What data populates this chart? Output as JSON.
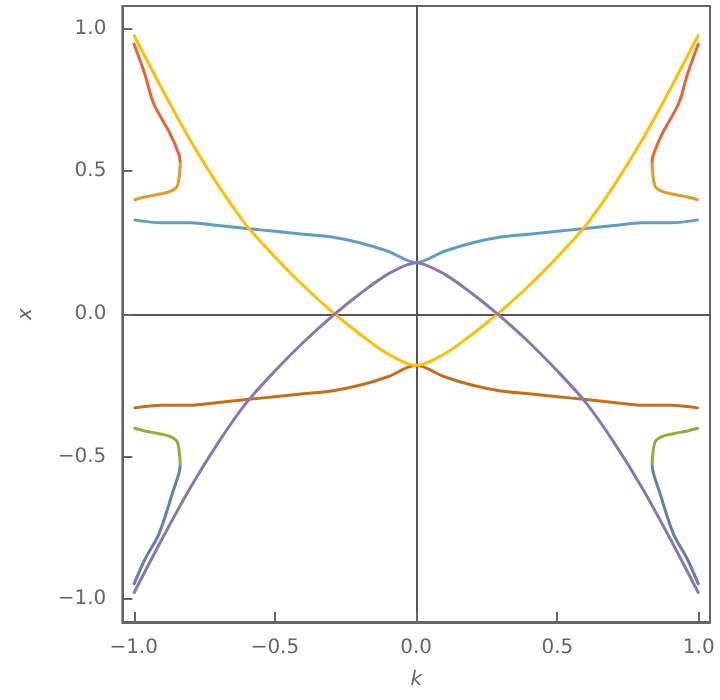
{
  "chart_data": {
    "type": "line",
    "xlabel": "k",
    "ylabel": "x",
    "marker": "none",
    "xlim": [
      -1.04,
      1.04
    ],
    "ylim": [
      -1.08,
      1.08
    ],
    "xticks": [
      {
        "value": -1,
        "label": "−1.0"
      },
      {
        "value": -0.5,
        "label": "−0.5"
      },
      {
        "value": 0,
        "label": "0.0"
      },
      {
        "value": 0.5,
        "label": "0.5"
      },
      {
        "value": 1,
        "label": "1.0"
      }
    ],
    "yticks": [
      {
        "value": -1,
        "label": "−1.0"
      },
      {
        "value": -0.5,
        "label": "−0.5"
      },
      {
        "value": 0,
        "label": "0.0"
      },
      {
        "value": 0.5,
        "label": "0.5"
      },
      {
        "value": 1,
        "label": "1.0"
      }
    ],
    "series": [
      {
        "color": "#5d9ec7",
        "x": [
          -1,
          -0.9,
          -0.8,
          -0.7,
          -0.6,
          -0.5,
          -0.4,
          -0.3,
          -0.2,
          -0.1,
          0,
          0.1,
          0.2,
          0.3,
          0.4,
          0.5,
          0.6,
          0.7,
          0.8,
          0.9,
          1
        ],
        "values": [
          0.33,
          0.32,
          0.32,
          0.31,
          0.3,
          0.29,
          0.28,
          0.27,
          0.25,
          0.22,
          0.18,
          0.22,
          0.25,
          0.27,
          0.28,
          0.29,
          0.3,
          0.31,
          0.32,
          0.32,
          0.33
        ]
      },
      {
        "color": "#c56e1a",
        "x": [
          -1,
          -0.9,
          -0.8,
          -0.7,
          -0.6,
          -0.5,
          -0.4,
          -0.3,
          -0.2,
          -0.1,
          0,
          0.1,
          0.2,
          0.3,
          0.4,
          0.5,
          0.6,
          0.7,
          0.8,
          0.9,
          1
        ],
        "values": [
          -0.33,
          -0.32,
          -0.32,
          -0.31,
          -0.3,
          -0.29,
          -0.28,
          -0.27,
          -0.25,
          -0.22,
          -0.18,
          -0.22,
          -0.25,
          -0.27,
          -0.28,
          -0.29,
          -0.3,
          -0.31,
          -0.32,
          -0.32,
          -0.33
        ]
      },
      {
        "color": "#ffbf00",
        "x": [
          -1,
          -0.9,
          -0.8,
          -0.7,
          -0.6,
          -0.5,
          -0.4,
          -0.3,
          -0.2,
          -0.1,
          0,
          0.1,
          0.2,
          0.3,
          0.4,
          0.5,
          0.6,
          0.7,
          0.8,
          0.9,
          1
        ],
        "values": [
          0.98,
          0.79,
          0.61,
          0.45,
          0.31,
          0.2,
          0.1,
          0.01,
          -0.07,
          -0.14,
          -0.18,
          -0.14,
          -0.07,
          0.01,
          0.1,
          0.2,
          0.31,
          0.45,
          0.61,
          0.79,
          0.98
        ]
      },
      {
        "color": "#8778b3",
        "x": [
          -1,
          -0.9,
          -0.8,
          -0.7,
          -0.6,
          -0.5,
          -0.4,
          -0.3,
          -0.2,
          -0.1,
          0,
          0.1,
          0.2,
          0.3,
          0.4,
          0.5,
          0.6,
          0.7,
          0.8,
          0.9,
          1
        ],
        "values": [
          -0.98,
          -0.79,
          -0.61,
          -0.45,
          -0.31,
          -0.2,
          -0.1,
          -0.01,
          0.07,
          0.14,
          0.18,
          0.14,
          0.07,
          -0.01,
          -0.1,
          -0.2,
          -0.31,
          -0.45,
          -0.61,
          -0.79,
          -0.98
        ]
      },
      {
        "color": "#eb6235",
        "x": [
          -1,
          -0.96,
          -0.93,
          -0.87,
          -0.84,
          -0.835
        ],
        "values": [
          0.95,
          0.84,
          0.74,
          0.63,
          0.56,
          0.53
        ]
      },
      {
        "color": "#e19c24",
        "x": [
          -0.835,
          -0.845,
          -0.87,
          -0.91,
          -0.96,
          -1
        ],
        "values": [
          0.53,
          0.45,
          0.43,
          0.42,
          0.41,
          0.4
        ]
      },
      {
        "color": "#eb6235",
        "x": [
          1,
          0.96,
          0.93,
          0.87,
          0.84,
          0.835
        ],
        "values": [
          0.95,
          0.84,
          0.74,
          0.63,
          0.56,
          0.53
        ]
      },
      {
        "color": "#e19c24",
        "x": [
          0.835,
          0.845,
          0.87,
          0.91,
          0.96,
          1
        ],
        "values": [
          0.53,
          0.45,
          0.43,
          0.42,
          0.41,
          0.4
        ]
      },
      {
        "color": "#5e81b5",
        "x": [
          -1,
          -0.96,
          -0.91,
          -0.86,
          -0.84,
          -0.835
        ],
        "values": [
          -0.95,
          -0.86,
          -0.77,
          -0.62,
          -0.56,
          -0.53
        ]
      },
      {
        "color": "#8fb032",
        "x": [
          -0.835,
          -0.845,
          -0.87,
          -0.91,
          -0.96,
          -1
        ],
        "values": [
          -0.53,
          -0.45,
          -0.43,
          -0.42,
          -0.41,
          -0.4
        ]
      },
      {
        "color": "#5e81b5",
        "x": [
          1,
          0.96,
          0.91,
          0.86,
          0.84,
          0.835
        ],
        "values": [
          -0.95,
          -0.86,
          -0.77,
          -0.62,
          -0.56,
          -0.53
        ]
      },
      {
        "color": "#8fb032",
        "x": [
          0.835,
          0.845,
          0.87,
          0.91,
          0.96,
          1
        ],
        "values": [
          -0.53,
          -0.45,
          -0.43,
          -0.42,
          -0.41,
          -0.4
        ]
      }
    ]
  }
}
